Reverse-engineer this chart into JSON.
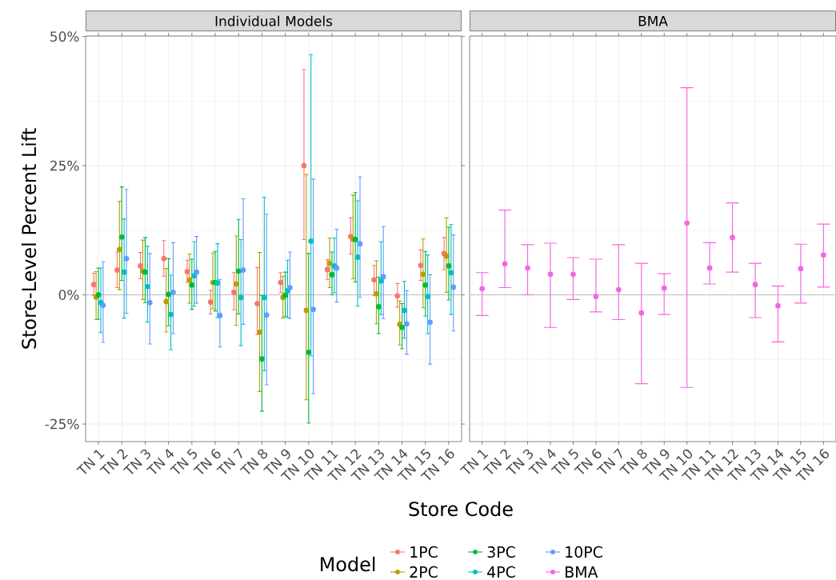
{
  "chart_data": [
    {
      "type": "scatter",
      "title": "Individual Models",
      "xlabel": "Store Code",
      "ylabel": "Store-Level Percent Lift",
      "legend_title": "Model",
      "legend": "bottom",
      "marker": "circle",
      "grid": true,
      "categories": [
        "TN 1",
        "TN 2",
        "TN 3",
        "TN 4",
        "TN 5",
        "TN 6",
        "TN 7",
        "TN 8",
        "TN 9",
        "TN 10",
        "TN 11",
        "TN 12",
        "TN 13",
        "TN 14",
        "TN 15",
        "TN 16"
      ],
      "ylim": [
        -28.4,
        50.1
      ],
      "yticks": [
        {
          "value": -25,
          "label": "-25%"
        },
        {
          "value": 0,
          "label": "0%"
        },
        {
          "value": 25,
          "label": "25%"
        },
        {
          "value": 50,
          "label": "50%"
        }
      ],
      "ref_lines": [
        {
          "axis": "y",
          "value": 0,
          "color": "#bebebe"
        }
      ],
      "series": [
        {
          "name": "1PC",
          "color": "#f8766d",
          "values": [
            2.0,
            4.8,
            5.6,
            7.0,
            4.5,
            -1.4,
            0.5,
            -1.7,
            2.4,
            25.0,
            4.9,
            11.3,
            2.9,
            -0.2,
            5.7,
            8.0
          ],
          "errors": [
            [
              -0.1,
              4.2
            ],
            [
              1.4,
              8.3
            ],
            [
              3.1,
              8.2
            ],
            [
              3.6,
              10.5
            ],
            [
              2.4,
              6.7
            ],
            [
              -3.7,
              0.9
            ],
            [
              -2.9,
              4.3
            ],
            [
              -7.7,
              5.3
            ],
            [
              0.4,
              4.3
            ],
            [
              10.7,
              43.6
            ],
            [
              3.0,
              6.8
            ],
            [
              7.9,
              14.9
            ],
            [
              -0.1,
              5.7
            ],
            [
              -2.4,
              2.2
            ],
            [
              2.8,
              8.7
            ],
            [
              4.9,
              11.1
            ]
          ]
        },
        {
          "name": "2PC",
          "color": "#b79f00",
          "values": [
            -0.4,
            8.8,
            4.6,
            -1.3,
            2.9,
            2.4,
            2.1,
            -7.2,
            -0.5,
            -3.0,
            6.1,
            10.8,
            0.2,
            -5.7,
            4.0,
            7.5
          ],
          "errors": [
            [
              -4.8,
              4.5
            ],
            [
              1.0,
              18.1
            ],
            [
              -0.9,
              10.6
            ],
            [
              -7.2,
              5.1
            ],
            [
              -1.6,
              7.9
            ],
            [
              -2.7,
              8.1
            ],
            [
              -5.9,
              11.4
            ],
            [
              -18.7,
              8.2
            ],
            [
              -4.5,
              3.6
            ],
            [
              -20.3,
              23.3
            ],
            [
              1.4,
              11.0
            ],
            [
              3.1,
              19.3
            ],
            [
              -5.6,
              6.6
            ],
            [
              -9.7,
              -1.2
            ],
            [
              -2.5,
              10.8
            ],
            [
              0.5,
              14.9
            ]
          ]
        },
        {
          "name": "3PC",
          "color": "#00ba38",
          "values": [
            0.0,
            11.2,
            4.4,
            0.1,
            1.9,
            2.4,
            4.6,
            -12.4,
            -0.1,
            -11.1,
            3.9,
            10.7,
            -2.3,
            -6.3,
            1.9,
            5.6
          ],
          "errors": [
            [
              -4.7,
              5.2
            ],
            [
              2.8,
              20.9
            ],
            [
              -1.5,
              11.1
            ],
            [
              -6.0,
              7.0
            ],
            [
              -2.8,
              6.9
            ],
            [
              -3.1,
              8.4
            ],
            [
              -3.7,
              14.6
            ],
            [
              -22.5,
              -0.1
            ],
            [
              -4.2,
              4.4
            ],
            [
              -24.8,
              8.0
            ],
            [
              0.0,
              8.3
            ],
            [
              2.5,
              19.8
            ],
            [
              -7.5,
              3.4
            ],
            [
              -10.4,
              -1.7
            ],
            [
              -4.1,
              8.4
            ],
            [
              -1.0,
              13.1
            ]
          ]
        },
        {
          "name": "4PC",
          "color": "#00bfc4",
          "values": [
            -1.5,
            4.4,
            1.6,
            -3.8,
            3.7,
            2.3,
            -0.5,
            -0.5,
            0.8,
            10.4,
            5.6,
            7.3,
            2.7,
            -3.0,
            -0.3,
            4.3
          ],
          "errors": [
            [
              -7.3,
              5.2
            ],
            [
              -4.5,
              14.7
            ],
            [
              -5.3,
              9.4
            ],
            [
              -10.6,
              3.8
            ],
            [
              -2.2,
              10.3
            ],
            [
              -4.4,
              9.9
            ],
            [
              -9.8,
              10.7
            ],
            [
              -14.7,
              18.9
            ],
            [
              -4.4,
              6.7
            ],
            [
              -11.8,
              46.5
            ],
            [
              0.4,
              11.0
            ],
            [
              -2.2,
              18.2
            ],
            [
              -3.8,
              10.3
            ],
            [
              -8.4,
              2.6
            ],
            [
              -7.5,
              7.7
            ],
            [
              -3.8,
              13.6
            ]
          ]
        },
        {
          "name": "10PC",
          "color": "#619cff",
          "values": [
            -2.0,
            7.0,
            -1.5,
            0.5,
            4.4,
            -4.0,
            4.8,
            -3.9,
            1.4,
            -2.8,
            5.2,
            9.9,
            3.5,
            -5.6,
            -5.3,
            1.5
          ],
          "errors": [
            [
              -9.2,
              6.4
            ],
            [
              -3.6,
              20.4
            ],
            [
              -9.5,
              8.0
            ],
            [
              -7.5,
              10.1
            ],
            [
              -1.6,
              11.3
            ],
            [
              -10.1,
              3.0
            ],
            [
              -5.7,
              18.6
            ],
            [
              -17.4,
              15.6
            ],
            [
              -4.6,
              8.3
            ],
            [
              -19.1,
              22.4
            ],
            [
              -1.4,
              12.7
            ],
            [
              -0.5,
              22.8
            ],
            [
              -4.6,
              13.2
            ],
            [
              -11.5,
              0.8
            ],
            [
              -13.4,
              3.9
            ],
            [
              -7.0,
              11.6
            ]
          ]
        }
      ]
    },
    {
      "type": "scatter",
      "title": "BMA",
      "legend": "bottom",
      "marker": "circle",
      "grid": true,
      "tick_labels": "x",
      "categories": [
        "TN 1",
        "TN 2",
        "TN 3",
        "TN 4",
        "TN 5",
        "TN 6",
        "TN 7",
        "TN 8",
        "TN 9",
        "TN 10",
        "TN 11",
        "TN 12",
        "TN 13",
        "TN 14",
        "TN 15",
        "TN 16"
      ],
      "ylim": [
        -28.4,
        50.1
      ],
      "yticks": [
        {
          "value": -25,
          "label": null
        },
        {
          "value": 0,
          "label": null
        },
        {
          "value": 25,
          "label": null
        },
        {
          "value": 50,
          "label": null
        }
      ],
      "ref_lines": [
        {
          "axis": "y",
          "value": 0,
          "color": "#bebebe"
        }
      ],
      "series": [
        {
          "name": "BMA",
          "color": "#f564e3",
          "values": [
            1.2,
            6.0,
            5.2,
            4.0,
            4.0,
            -0.3,
            1.0,
            -3.5,
            1.3,
            13.9,
            5.2,
            11.1,
            2.0,
            -2.1,
            5.1,
            7.7
          ],
          "errors": [
            [
              -4.0,
              4.3
            ],
            [
              1.4,
              16.4
            ],
            [
              0.0,
              9.7
            ],
            [
              -6.3,
              10.0
            ],
            [
              -0.9,
              7.2
            ],
            [
              -3.3,
              6.9
            ],
            [
              -4.8,
              9.7
            ],
            [
              -17.2,
              6.1
            ],
            [
              -3.8,
              4.1
            ],
            [
              -17.9,
              40.1
            ],
            [
              2.1,
              10.1
            ],
            [
              4.4,
              17.8
            ],
            [
              -4.4,
              6.1
            ],
            [
              -9.1,
              1.7
            ],
            [
              -1.6,
              9.8
            ],
            [
              1.5,
              13.7
            ]
          ]
        }
      ]
    }
  ]
}
